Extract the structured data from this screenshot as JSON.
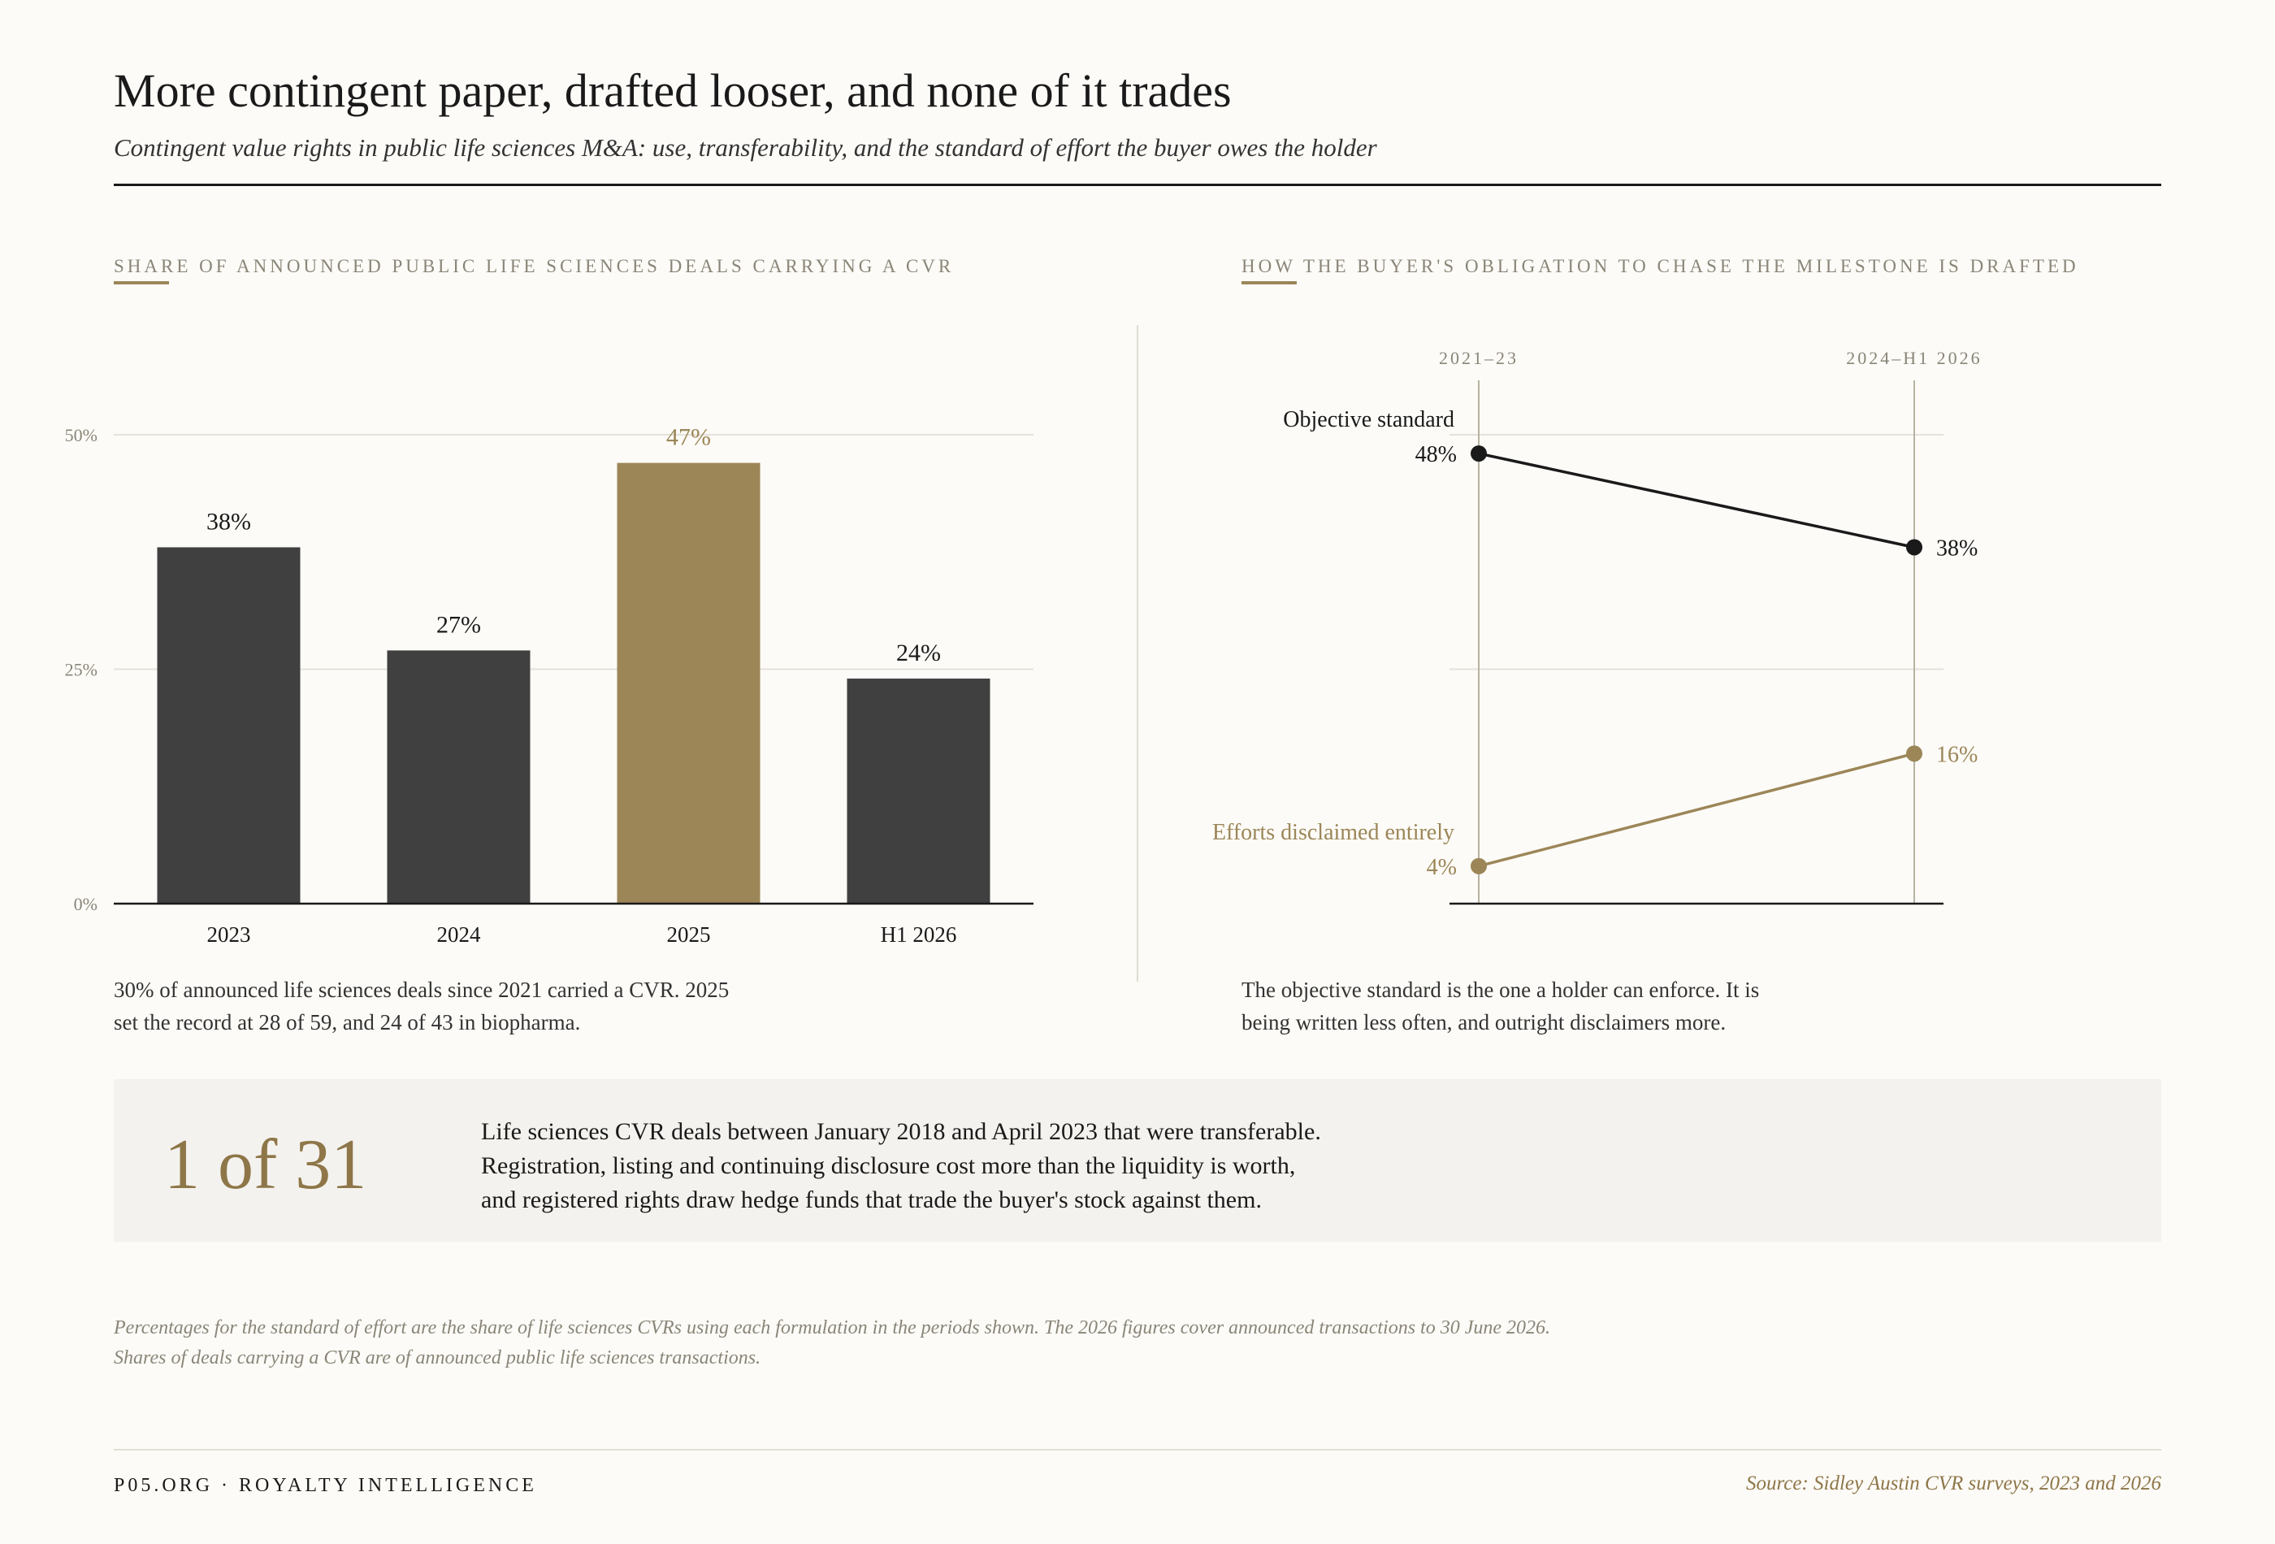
{
  "header": {
    "title": "More contingent paper, drafted looser, and none of it trades",
    "subtitle": "Contingent value rights in public life sciences M&A: use, transferability, and the standard of effort the buyer owes the holder"
  },
  "left_panel": {
    "label": "SHARE OF ANNOUNCED PUBLIC LIFE SCIENCES DEALS CARRYING A CVR",
    "note_lines": [
      "30% of announced life sciences deals since 2021 carried a CVR. 2025",
      "set the record at 28 of 59, and 24 of 43 in biopharma."
    ]
  },
  "right_panel": {
    "label": "HOW THE BUYER'S OBLIGATION TO CHASE THE MILESTONE IS DRAFTED",
    "note_lines": [
      "The objective standard is the one a holder can enforce. It is",
      "being written less often, and outright disclaimers more."
    ]
  },
  "chart_data": [
    {
      "type": "bar",
      "title": "SHARE OF ANNOUNCED PUBLIC LIFE SCIENCES DEALS CARRYING A CVR",
      "categories": [
        "2023",
        "2024",
        "2025",
        "H1 2026"
      ],
      "values": [
        38,
        27,
        47,
        24
      ],
      "value_labels": [
        "38%",
        "27%",
        "47%",
        "24%"
      ],
      "highlight_index": 2,
      "ylim": [
        0,
        50
      ],
      "y_ticks": [
        0,
        25,
        50
      ],
      "y_tick_labels": [
        "0%",
        "25%",
        "50%"
      ],
      "grid": true,
      "colors": {
        "bar": "#404040",
        "highlight": "#9c8658",
        "text": "#1a1a1a",
        "axis_text": "#8a8578",
        "grid": "#e5e2da"
      }
    },
    {
      "type": "line",
      "title": "HOW THE BUYER'S OBLIGATION TO CHASE THE MILESTONE IS DRAFTED",
      "categories": [
        "2021–23",
        "2024–H1 2026"
      ],
      "ylim": [
        0,
        50
      ],
      "grid": true,
      "series": [
        {
          "name": "Objective standard",
          "values": [
            48,
            38
          ],
          "value_labels": [
            "48%",
            "38%"
          ],
          "color": "#1a1a1a"
        },
        {
          "name": "Efforts disclaimed entirely",
          "values": [
            4,
            16
          ],
          "value_labels": [
            "4%",
            "16%"
          ],
          "color": "#9c8658"
        }
      ],
      "colors": {
        "axis_text": "#8a8578",
        "guide": "#b8b2a3",
        "grid": "#e5e2da"
      }
    }
  ],
  "callout": {
    "stat": "1 of 31",
    "lines": [
      "Life sciences CVR deals between January 2018 and April 2023 that were transferable.",
      "Registration, listing and continuing disclosure cost more than the liquidity is worth,",
      "and registered rights draw hedge funds that trade the buyer's stock against them."
    ]
  },
  "footnote": "Percentages for the standard of effort are the share of life sciences CVRs using each formulation in the periods shown. The 2026 figures cover announced transactions to 30 June 2026. Shares of deals carrying a CVR are of announced public life sciences transactions.",
  "footer": {
    "brand": "P05.ORG · ROYALTY INTELLIGENCE",
    "source": "Source: Sidley Austin CVR surveys, 2023 and 2026"
  }
}
